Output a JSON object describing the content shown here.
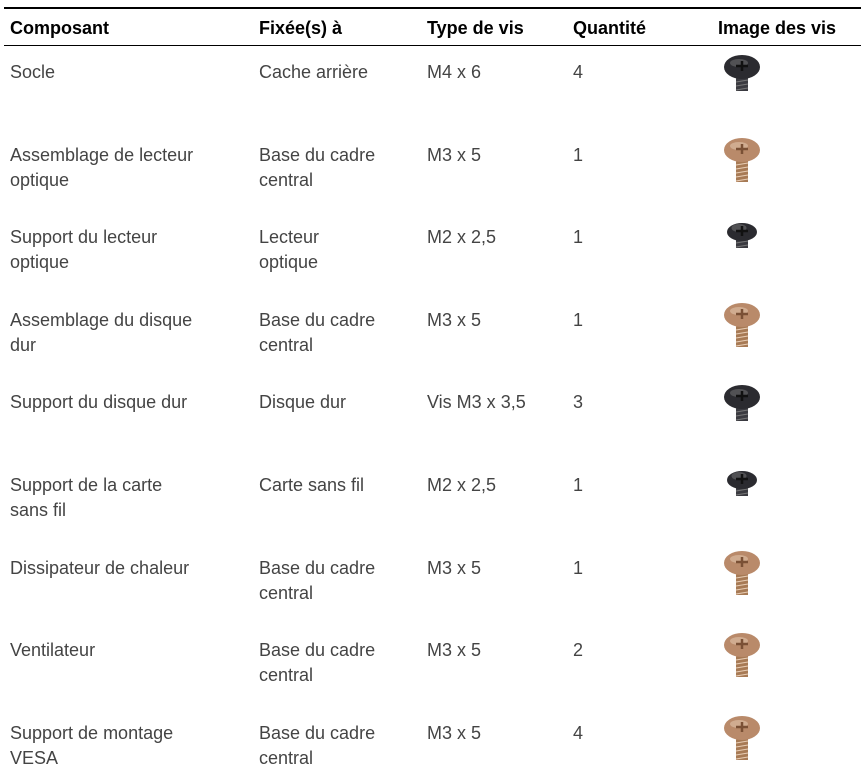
{
  "header": {
    "columns": [
      "Composant",
      "Fixée(s) à",
      "Type de vis",
      "Quantité",
      "Image des vis"
    ]
  },
  "table": {
    "rows": [
      [
        [
          "Socle"
        ],
        [
          "Cache arrière"
        ],
        [
          "M4 x 6"
        ],
        [
          "4"
        ]
      ],
      [
        [
          "Assemblage de lecteur",
          "optique"
        ],
        [
          "Base du cadre",
          "central"
        ],
        [
          "M3 x 5"
        ],
        [
          "1"
        ]
      ],
      [
        [
          "Support du lecteur",
          "optique"
        ],
        [
          "Lecteur",
          "optique"
        ],
        [
          "M2 x 2,5"
        ],
        [
          "1"
        ]
      ],
      [
        [
          "Assemblage du disque",
          "dur"
        ],
        [
          "Base du cadre",
          "central"
        ],
        [
          "M3 x 5"
        ],
        [
          "1"
        ]
      ],
      [
        [
          "Support du disque dur"
        ],
        [
          "Disque dur"
        ],
        [
          "Vis M3 x 3,5"
        ],
        [
          "3"
        ]
      ],
      [
        [
          "Support de la carte",
          "sans fil"
        ],
        [
          "Carte sans fil"
        ],
        [
          "M2 x 2,5"
        ],
        [
          "1"
        ]
      ],
      [
        [
          "Dissipateur de chaleur"
        ],
        [
          "Base du cadre",
          "central"
        ],
        [
          "M3 x 5"
        ],
        [
          "1"
        ]
      ],
      [
        [
          "Ventilateur"
        ],
        [
          "Base du cadre",
          "central"
        ],
        [
          "M3 x 5"
        ],
        [
          "2"
        ]
      ],
      [
        [
          "Support de montage",
          "VESA"
        ],
        [
          "Base du cadre",
          "central"
        ],
        [
          "M3 x 5"
        ],
        [
          "4"
        ]
      ]
    ]
  }
}
